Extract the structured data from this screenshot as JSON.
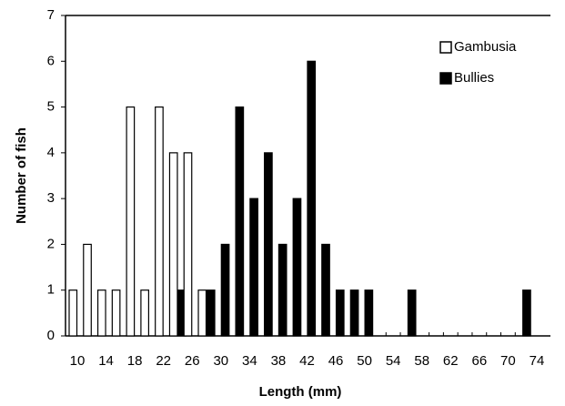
{
  "chart_data": {
    "type": "bar",
    "x_label": "Length (mm)",
    "y_label": "Number of fish",
    "categories": [
      "10",
      null,
      "14",
      null,
      "18",
      null,
      "22",
      null,
      "26",
      null,
      "30",
      null,
      "34",
      null,
      "38",
      null,
      "42",
      null,
      "46",
      null,
      "50",
      null,
      "54",
      null,
      "58",
      null,
      "62",
      null,
      "66",
      null,
      "70",
      null,
      "74"
    ],
    "series": [
      {
        "name": "Gambusia",
        "color": "#ffffff",
        "values": [
          1,
          2,
          1,
          1,
          5,
          1,
          5,
          4,
          4,
          1,
          0,
          0,
          0,
          0,
          0,
          0,
          0,
          0,
          0,
          0,
          0,
          0,
          0,
          0,
          0,
          0,
          0,
          0,
          0,
          0,
          0,
          0,
          0
        ]
      },
      {
        "name": "Bullies",
        "color": "#000000",
        "values": [
          0,
          0,
          0,
          0,
          0,
          0,
          0,
          1,
          0,
          1,
          2,
          5,
          3,
          4,
          2,
          3,
          6,
          2,
          1,
          1,
          1,
          0,
          0,
          1,
          0,
          0,
          0,
          0,
          0,
          0,
          0,
          1,
          0
        ]
      }
    ],
    "ylim": [
      0,
      7
    ],
    "yticks": [
      0,
      1,
      2,
      3,
      4,
      5,
      6,
      7
    ],
    "legend": "top-right"
  }
}
